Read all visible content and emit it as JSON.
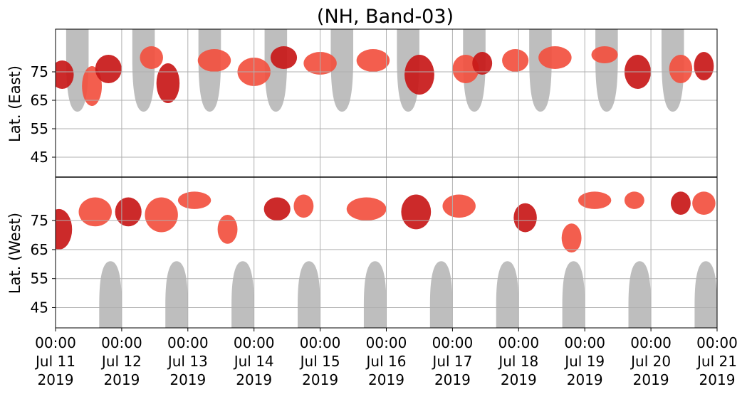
{
  "colors": {
    "background": "#ffffff",
    "grid": "#b0b0b0",
    "polar_night_mask": "#bebebe",
    "event_light": "#f2503f",
    "event_dark": "#c81818",
    "centerline": "#000000"
  },
  "chart_data": {
    "type": "heatmap",
    "title": "(NH, Band-03)",
    "ylabel_top": "Lat. (East)",
    "ylabel_bottom": "Lat. (West)",
    "xlim": [
      "2019-07-11 00:00",
      "2019-07-21 00:00"
    ],
    "x_ticks": [
      {
        "time": "00:00",
        "date": "Jul 11",
        "year": "2019"
      },
      {
        "time": "00:00",
        "date": "Jul 12",
        "year": "2019"
      },
      {
        "time": "00:00",
        "date": "Jul 13",
        "year": "2019"
      },
      {
        "time": "00:00",
        "date": "Jul 14",
        "year": "2019"
      },
      {
        "time": "00:00",
        "date": "Jul 15",
        "year": "2019"
      },
      {
        "time": "00:00",
        "date": "Jul 16",
        "year": "2019"
      },
      {
        "time": "00:00",
        "date": "Jul 17",
        "year": "2019"
      },
      {
        "time": "00:00",
        "date": "Jul 18",
        "year": "2019"
      },
      {
        "time": "00:00",
        "date": "Jul 19",
        "year": "2019"
      },
      {
        "time": "00:00",
        "date": "Jul 20",
        "year": "2019"
      },
      {
        "time": "00:00",
        "date": "Jul 21",
        "year": "2019"
      }
    ],
    "y_ticks_east": [
      "45",
      "55",
      "65",
      "75"
    ],
    "y_ticks_west": [
      "75",
      "65",
      "55",
      "45"
    ],
    "y_range_east": [
      38,
      90
    ],
    "y_range_west": [
      90,
      38
    ],
    "grid": true,
    "panels": [
      {
        "side": "east",
        "label": "Lat. (East)"
      },
      {
        "side": "west",
        "label": "Lat. (West)"
      }
    ],
    "mask_series": {
      "name": "",
      "east_day_centers": [
        11.33,
        12.33,
        13.33,
        14.33,
        15.33,
        16.33,
        17.33,
        18.33,
        19.33,
        20.33
      ],
      "west_day_centers": [
        11.83,
        12.83,
        13.83,
        14.83,
        15.83,
        16.83,
        17.83,
        18.83,
        19.83,
        20.83
      ],
      "edge_lat": 61
    },
    "event_blobs": [
      {
        "side": "east",
        "day": 11.1,
        "lat": 74,
        "width_days": 0.35,
        "lat_span": 10,
        "intensity": "dark"
      },
      {
        "side": "east",
        "day": 11.55,
        "lat": 70,
        "width_days": 0.3,
        "lat_span": 14,
        "intensity": "light"
      },
      {
        "side": "east",
        "day": 11.8,
        "lat": 76,
        "width_days": 0.4,
        "lat_span": 10,
        "intensity": "dark"
      },
      {
        "side": "east",
        "day": 12.45,
        "lat": 80,
        "width_days": 0.35,
        "lat_span": 8,
        "intensity": "light"
      },
      {
        "side": "east",
        "day": 12.7,
        "lat": 71,
        "width_days": 0.35,
        "lat_span": 14,
        "intensity": "dark"
      },
      {
        "side": "east",
        "day": 13.4,
        "lat": 79,
        "width_days": 0.5,
        "lat_span": 8,
        "intensity": "light"
      },
      {
        "side": "east",
        "day": 14.0,
        "lat": 75,
        "width_days": 0.5,
        "lat_span": 10,
        "intensity": "light"
      },
      {
        "side": "east",
        "day": 14.45,
        "lat": 80,
        "width_days": 0.4,
        "lat_span": 8,
        "intensity": "dark"
      },
      {
        "side": "east",
        "day": 15.0,
        "lat": 78,
        "width_days": 0.5,
        "lat_span": 8,
        "intensity": "light"
      },
      {
        "side": "east",
        "day": 15.8,
        "lat": 79,
        "width_days": 0.5,
        "lat_span": 8,
        "intensity": "light"
      },
      {
        "side": "east",
        "day": 16.5,
        "lat": 74,
        "width_days": 0.45,
        "lat_span": 14,
        "intensity": "dark"
      },
      {
        "side": "east",
        "day": 17.2,
        "lat": 76,
        "width_days": 0.4,
        "lat_span": 10,
        "intensity": "light"
      },
      {
        "side": "east",
        "day": 17.45,
        "lat": 78,
        "width_days": 0.3,
        "lat_span": 8,
        "intensity": "dark"
      },
      {
        "side": "east",
        "day": 17.95,
        "lat": 79,
        "width_days": 0.4,
        "lat_span": 8,
        "intensity": "light"
      },
      {
        "side": "east",
        "day": 18.55,
        "lat": 80,
        "width_days": 0.5,
        "lat_span": 8,
        "intensity": "light"
      },
      {
        "side": "east",
        "day": 19.3,
        "lat": 81,
        "width_days": 0.4,
        "lat_span": 6,
        "intensity": "light"
      },
      {
        "side": "east",
        "day": 19.8,
        "lat": 75,
        "width_days": 0.4,
        "lat_span": 12,
        "intensity": "dark"
      },
      {
        "side": "east",
        "day": 20.45,
        "lat": 76,
        "width_days": 0.35,
        "lat_span": 10,
        "intensity": "light"
      },
      {
        "side": "east",
        "day": 20.8,
        "lat": 77,
        "width_days": 0.3,
        "lat_span": 10,
        "intensity": "dark"
      },
      {
        "side": "west",
        "day": 11.05,
        "lat": 72,
        "width_days": 0.4,
        "lat_span": 14,
        "intensity": "dark"
      },
      {
        "side": "west",
        "day": 11.6,
        "lat": 78,
        "width_days": 0.5,
        "lat_span": 10,
        "intensity": "light"
      },
      {
        "side": "west",
        "day": 12.1,
        "lat": 78,
        "width_days": 0.4,
        "lat_span": 10,
        "intensity": "dark"
      },
      {
        "side": "west",
        "day": 12.6,
        "lat": 77,
        "width_days": 0.5,
        "lat_span": 12,
        "intensity": "light"
      },
      {
        "side": "west",
        "day": 13.1,
        "lat": 82,
        "width_days": 0.5,
        "lat_span": 6,
        "intensity": "light"
      },
      {
        "side": "west",
        "day": 13.6,
        "lat": 72,
        "width_days": 0.3,
        "lat_span": 10,
        "intensity": "light"
      },
      {
        "side": "west",
        "day": 14.35,
        "lat": 79,
        "width_days": 0.4,
        "lat_span": 8,
        "intensity": "dark"
      },
      {
        "side": "west",
        "day": 14.75,
        "lat": 80,
        "width_days": 0.3,
        "lat_span": 8,
        "intensity": "light"
      },
      {
        "side": "west",
        "day": 15.7,
        "lat": 79,
        "width_days": 0.6,
        "lat_span": 8,
        "intensity": "light"
      },
      {
        "side": "west",
        "day": 16.45,
        "lat": 78,
        "width_days": 0.45,
        "lat_span": 12,
        "intensity": "dark"
      },
      {
        "side": "west",
        "day": 17.1,
        "lat": 80,
        "width_days": 0.5,
        "lat_span": 8,
        "intensity": "light"
      },
      {
        "side": "west",
        "day": 18.1,
        "lat": 76,
        "width_days": 0.35,
        "lat_span": 10,
        "intensity": "dark"
      },
      {
        "side": "west",
        "day": 18.8,
        "lat": 69,
        "width_days": 0.3,
        "lat_span": 10,
        "intensity": "light"
      },
      {
        "side": "west",
        "day": 19.15,
        "lat": 82,
        "width_days": 0.5,
        "lat_span": 6,
        "intensity": "light"
      },
      {
        "side": "west",
        "day": 19.75,
        "lat": 82,
        "width_days": 0.3,
        "lat_span": 6,
        "intensity": "light"
      },
      {
        "side": "west",
        "day": 20.45,
        "lat": 81,
        "width_days": 0.3,
        "lat_span": 8,
        "intensity": "dark"
      },
      {
        "side": "west",
        "day": 20.8,
        "lat": 81,
        "width_days": 0.35,
        "lat_span": 8,
        "intensity": "light"
      }
    ]
  }
}
